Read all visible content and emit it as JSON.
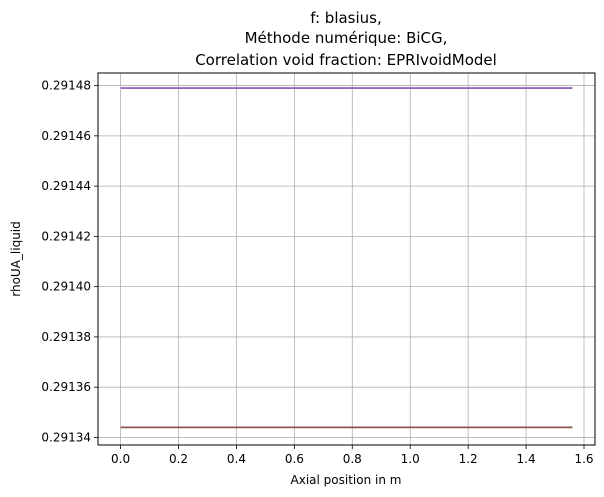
{
  "chart_data": {
    "type": "line",
    "title_lines": [
      "f: blasius,",
      "Méthode numérique: BiCG,",
      "Correlation void fraction: EPRIvoidModel"
    ],
    "xlabel": "Axial position in m",
    "ylabel": "rhoUA_liquid",
    "xlim": [
      -0.078,
      1.638
    ],
    "ylim": [
      0.291337,
      0.291485
    ],
    "x_ticks": [
      0.0,
      0.2,
      0.4,
      0.6,
      0.8,
      1.0,
      1.2,
      1.4,
      1.6
    ],
    "x_tick_labels": [
      "0.0",
      "0.2",
      "0.4",
      "0.6",
      "0.8",
      "1.0",
      "1.2",
      "1.4",
      "1.6"
    ],
    "y_ticks": [
      0.29134,
      0.29136,
      0.29138,
      0.2914,
      0.29142,
      0.29144,
      0.29146,
      0.29148
    ],
    "y_tick_labels": [
      "0.29134",
      "0.29136",
      "0.29138",
      "0.29140",
      "0.29142",
      "0.29144",
      "0.29146",
      "0.29148"
    ],
    "grid": true,
    "series": [
      {
        "color": "#8c564b",
        "x": [
          0.0,
          1.56
        ],
        "y": [
          0.291344,
          0.291344
        ]
      },
      {
        "color": "#9467bd",
        "x": [
          0.0,
          1.56
        ],
        "y": [
          0.291479,
          0.291479
        ]
      }
    ]
  }
}
